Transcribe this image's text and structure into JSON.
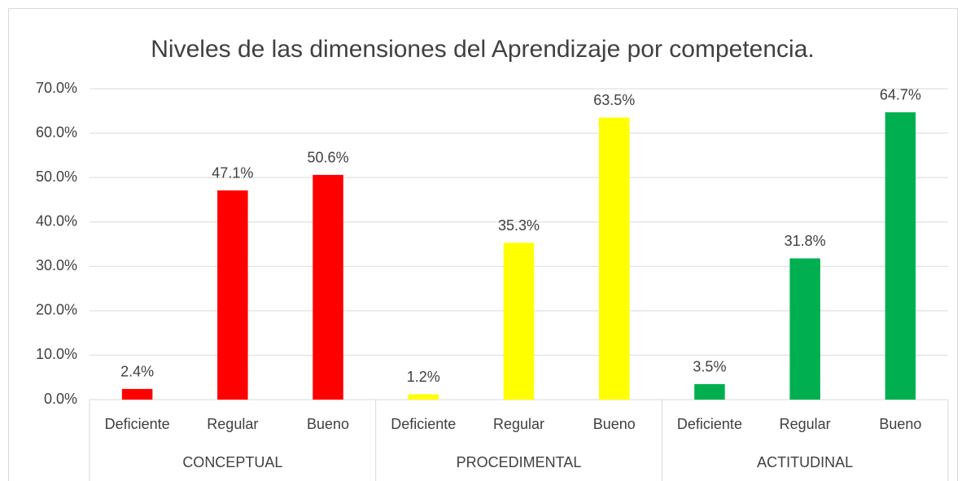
{
  "chart_data": {
    "type": "bar",
    "title": "Niveles de las dimensiones del Aprendizaje por competencia.",
    "ylim": [
      0,
      70
    ],
    "yticks": [
      {
        "value": 0,
        "label": "0.0%"
      },
      {
        "value": 10,
        "label": "10.0%"
      },
      {
        "value": 20,
        "label": "20.0%"
      },
      {
        "value": 30,
        "label": "30.0%"
      },
      {
        "value": 40,
        "label": "40.0%"
      },
      {
        "value": 50,
        "label": "50.0%"
      },
      {
        "value": 60,
        "label": "60.0%"
      },
      {
        "value": 70,
        "label": "70.0%"
      }
    ],
    "grid": true,
    "groups": [
      {
        "name": "CONCEPTUAL",
        "color": "#ff0000",
        "categories": [
          "Deficiente",
          "Regular",
          "Bueno"
        ],
        "values": [
          2.4,
          47.1,
          50.6
        ],
        "value_labels": [
          "2.4%",
          "47.1%",
          "50.6%"
        ]
      },
      {
        "name": "PROCEDIMENTAL",
        "color": "#ffff00",
        "categories": [
          "Deficiente",
          "Regular",
          "Bueno"
        ],
        "values": [
          1.2,
          35.3,
          63.5
        ],
        "value_labels": [
          "1.2%",
          "35.3%",
          "63.5%"
        ]
      },
      {
        "name": "ACTITUDINAL",
        "color": "#00b050",
        "categories": [
          "Deficiente",
          "Regular",
          "Bueno"
        ],
        "values": [
          3.5,
          31.8,
          64.7
        ],
        "value_labels": [
          "3.5%",
          "31.8%",
          "64.7%"
        ]
      }
    ]
  }
}
